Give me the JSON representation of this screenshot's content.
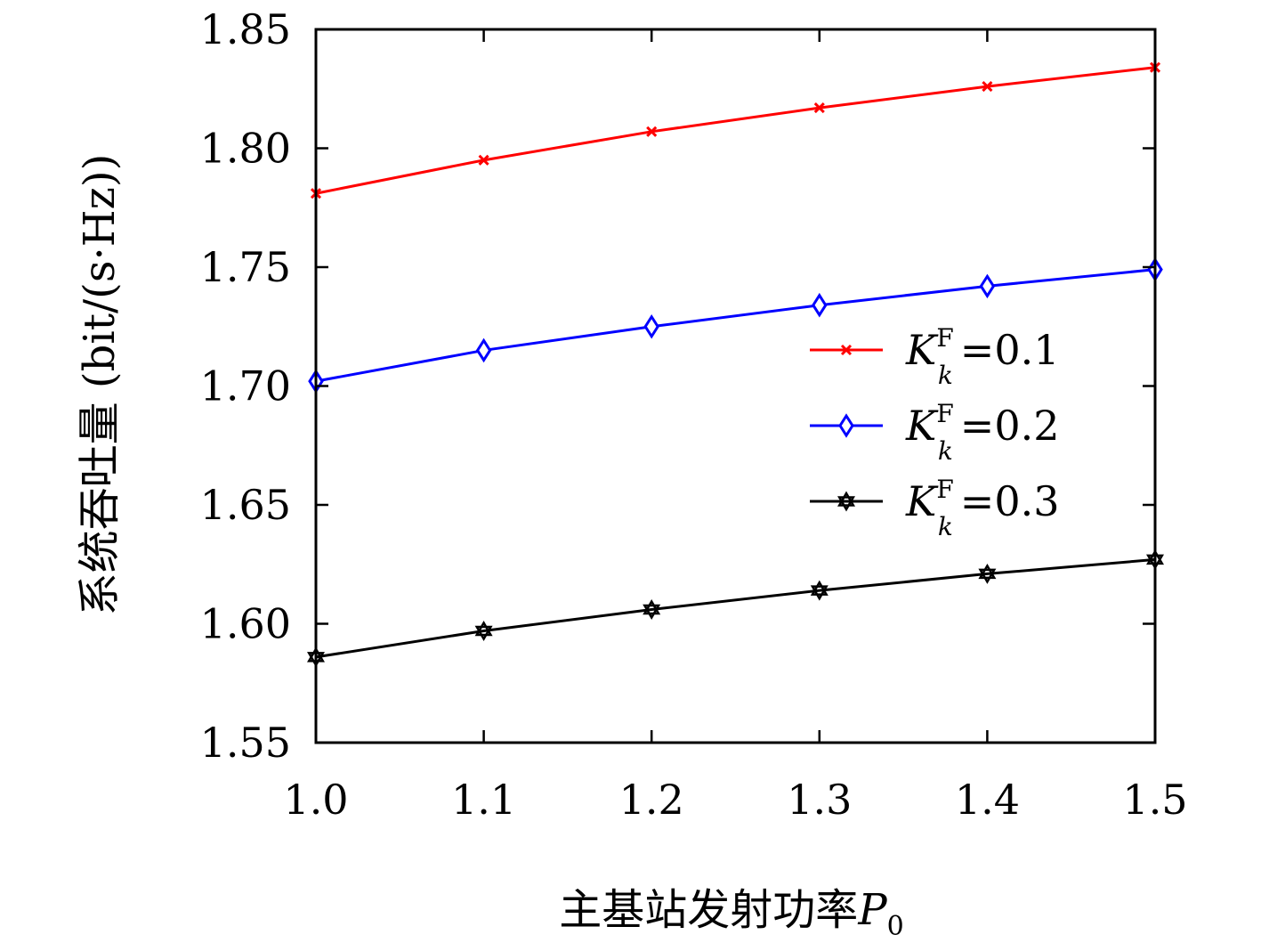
{
  "chart_data": {
    "type": "line",
    "xlabel": "主基站发射功率",
    "xlabel_symbol": "P",
    "xlabel_subscript": "0",
    "ylabel": "系统吞吐量 (bit/(s·Hz))",
    "x": [
      1.0,
      1.1,
      1.2,
      1.3,
      1.4,
      1.5
    ],
    "xticks": [
      "1.0",
      "1.1",
      "1.2",
      "1.3",
      "1.4",
      "1.5"
    ],
    "yticks": [
      "1.55",
      "1.60",
      "1.65",
      "1.70",
      "1.75",
      "1.80",
      "1.85"
    ],
    "xlim": [
      1.0,
      1.5
    ],
    "ylim": [
      1.55,
      1.85
    ],
    "grid": false,
    "legend_position": "right",
    "series": [
      {
        "name": "K_k^F=0.1",
        "legend": {
          "symbol": "K",
          "sub": "k",
          "sup": "F",
          "value": "=0.1"
        },
        "color": "#ff0000",
        "marker": "x",
        "values": [
          1.781,
          1.795,
          1.807,
          1.817,
          1.826,
          1.834
        ]
      },
      {
        "name": "K_k^F=0.2",
        "legend": {
          "symbol": "K",
          "sub": "k",
          "sup": "F",
          "value": "=0.2"
        },
        "color": "#0000ff",
        "marker": "diamond",
        "values": [
          1.702,
          1.715,
          1.725,
          1.734,
          1.742,
          1.749
        ]
      },
      {
        "name": "K_k^F=0.3",
        "legend": {
          "symbol": "K",
          "sub": "k",
          "sup": "F",
          "value": "=0.3"
        },
        "color": "#000000",
        "marker": "star",
        "values": [
          1.586,
          1.597,
          1.606,
          1.614,
          1.621,
          1.627
        ]
      }
    ]
  }
}
